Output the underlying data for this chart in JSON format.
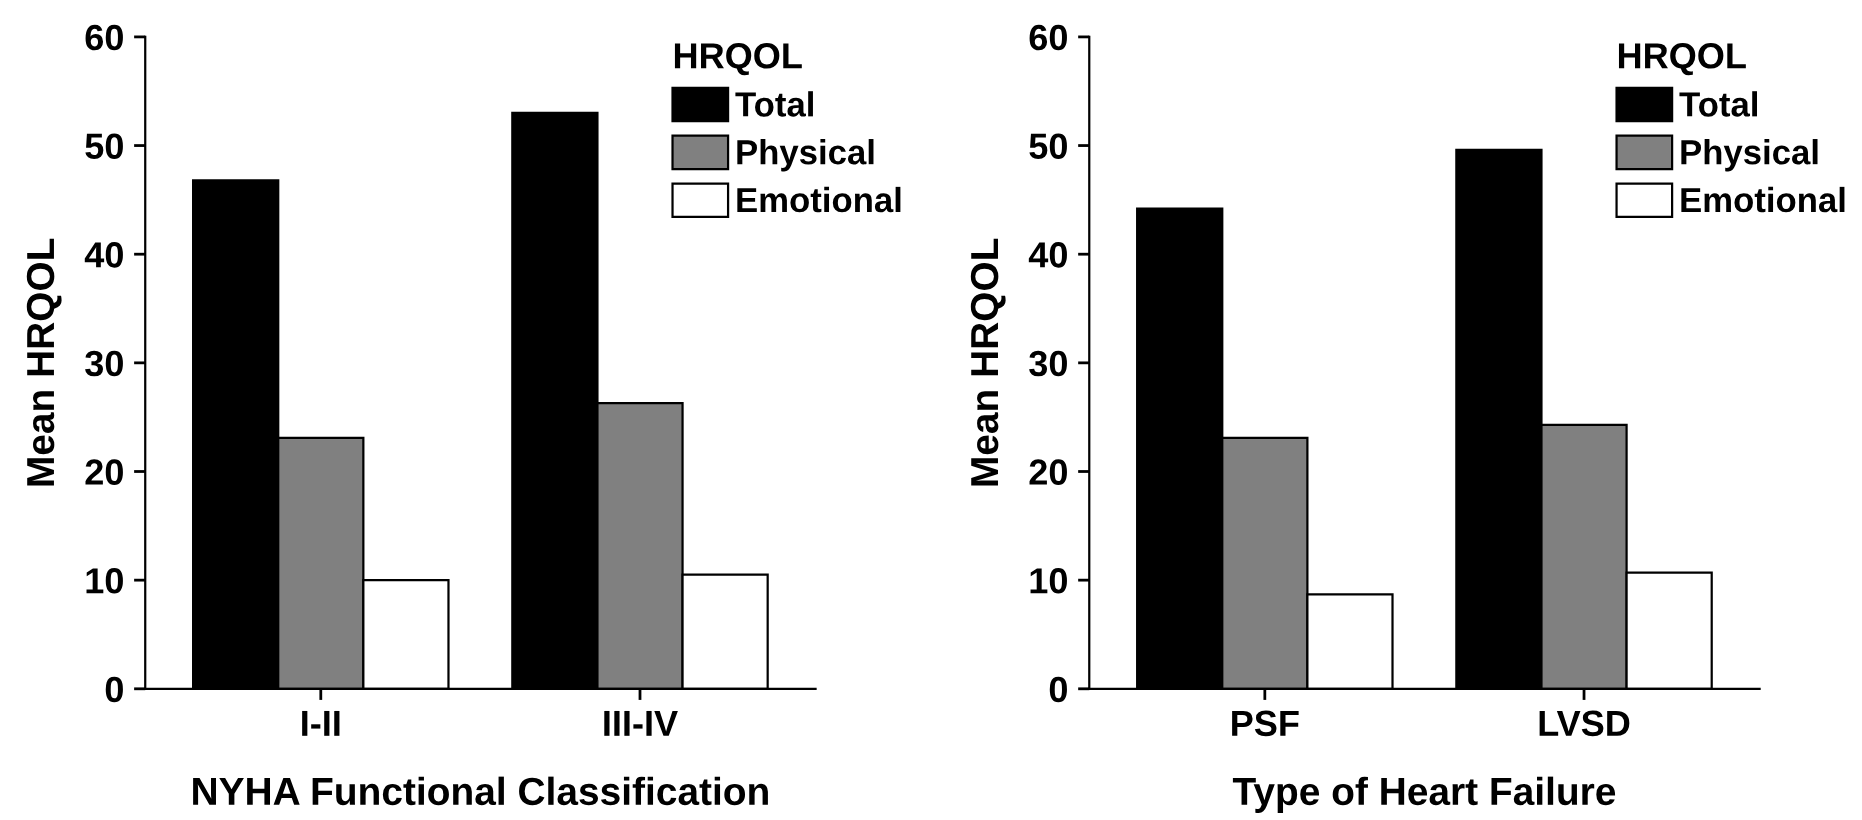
{
  "chart_data": [
    {
      "type": "bar",
      "xlabel": "NYHA Functional Classification",
      "ylabel": "Mean HRQOL",
      "legend_title": "HRQOL",
      "legend": "top right",
      "categories": [
        "I-II",
        "III-IV"
      ],
      "ylim": [
        0,
        60
      ],
      "yticks": [
        0,
        10,
        20,
        30,
        40,
        50,
        60
      ],
      "grid": false,
      "series": [
        {
          "name": "Total",
          "color": "#000000",
          "values": [
            46.8,
            53.0
          ]
        },
        {
          "name": "Physical",
          "color": "#808080",
          "values": [
            23.1,
            26.3
          ]
        },
        {
          "name": "Emotional",
          "color": "#ffffff",
          "values": [
            10.0,
            10.5
          ]
        }
      ]
    },
    {
      "type": "bar",
      "xlabel": "Type of Heart Failure",
      "ylabel": "Mean HRQOL",
      "legend_title": "HRQOL",
      "legend": "top right",
      "categories": [
        "PSF",
        "LVSD"
      ],
      "ylim": [
        0,
        60
      ],
      "yticks": [
        0,
        10,
        20,
        30,
        40,
        50,
        60
      ],
      "grid": false,
      "series": [
        {
          "name": "Total",
          "color": "#000000",
          "values": [
            44.2,
            49.6
          ]
        },
        {
          "name": "Physical",
          "color": "#808080",
          "values": [
            23.1,
            24.3
          ]
        },
        {
          "name": "Emotional",
          "color": "#ffffff",
          "values": [
            8.7,
            10.7
          ]
        }
      ]
    }
  ]
}
